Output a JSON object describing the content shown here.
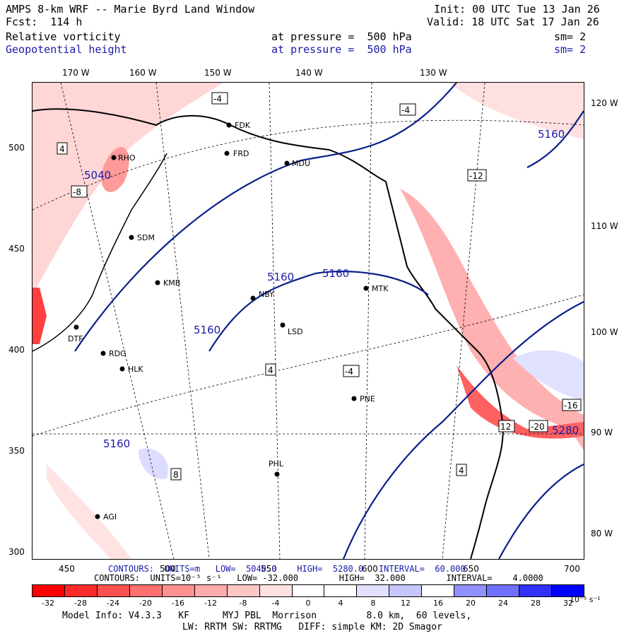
{
  "header": {
    "model_title": "AMPS 8-km WRF -- Marie Byrd Land Window",
    "forecast": "Fcst:  114 h",
    "init": "Init: 00 UTC Tue 13 Jan 26",
    "valid": "Valid: 18 UTC Sat 17 Jan 26",
    "field1_name": "Relative vorticity",
    "field1_level": "at pressure =  500 hPa",
    "field1_sm": "sm= 2",
    "field2_name": "Geopotential height",
    "field2_level": "at pressure =  500 hPa",
    "field2_sm": "sm= 2"
  },
  "axes": {
    "top_lon": [
      "170 W",
      "160 W",
      "150 W",
      "140 W",
      "130 W"
    ],
    "right_lon": [
      "120 W",
      "110 W",
      "100 W",
      "90 W",
      "80 W"
    ],
    "left_y": [
      "500",
      "450",
      "400",
      "350",
      "300"
    ],
    "bottom_x": [
      "450",
      "500",
      "550",
      "600",
      "650",
      "700"
    ]
  },
  "stations": [
    {
      "id": "FDK"
    },
    {
      "id": "FRD"
    },
    {
      "id": "MDU"
    },
    {
      "id": "RHO"
    },
    {
      "id": "SDM"
    },
    {
      "id": "KMB"
    },
    {
      "id": "NBY"
    },
    {
      "id": "MTK"
    },
    {
      "id": "LSD"
    },
    {
      "id": "DTF"
    },
    {
      "id": "RDG"
    },
    {
      "id": "HLK"
    },
    {
      "id": "PNE"
    },
    {
      "id": "PHL"
    },
    {
      "id": "AGI"
    }
  ],
  "height_labels": [
    "5160",
    "5160",
    "5160",
    "5160",
    "5160",
    "5040",
    "5280"
  ],
  "vort_labels": [
    "4",
    "-4",
    "-8",
    "-12",
    "8",
    "12",
    "-20",
    "-16"
  ],
  "footer": {
    "contours_height": "CONTOURS:  UNITS=m   LOW=  5040.0    HIGH=  5280.0   INTERVAL=  60.000",
    "contours_vort": "CONTOURS:  UNITS=10⁻⁵ s⁻¹   LOW= -32.000        HIGH=  32.000        INTERVAL=    4.0000",
    "colorbar_labels": [
      "-32",
      "-28",
      "-24",
      "-20",
      "-16",
      "-12",
      "-8",
      "-4",
      "0",
      "4",
      "8",
      "12",
      "16",
      "20",
      "24",
      "28",
      "32"
    ],
    "colorbar_units": "10⁻⁵ s⁻¹",
    "model_info": "Model Info: V4.3.3   KF      MYJ PBL  Morrison         8.0 km,  60 levels,",
    "model_info2": "LW: RRTM SW: RRTMG   DIFF: simple KM: 2D Smagor"
  },
  "colors": {
    "neg_strong": "#ff0000",
    "neg_mid": "#ff7d7d",
    "neg_light": "#ffd6d6",
    "pos_light": "#d7d7ff",
    "pos_strong": "#0000ff",
    "height_contour": "#0b1f8a"
  }
}
